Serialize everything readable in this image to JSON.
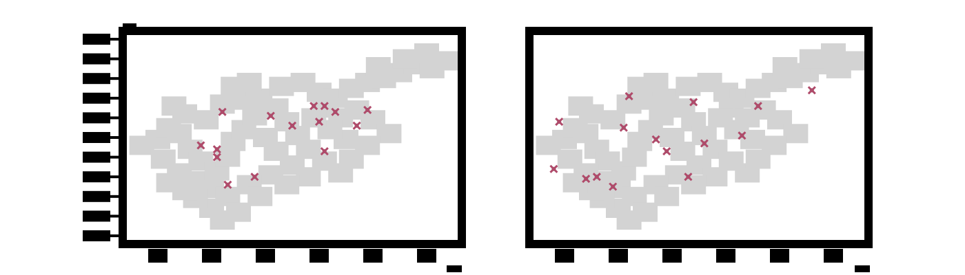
{
  "chart_data": [
    {
      "type": "scatter",
      "title": "",
      "xlabel": "",
      "ylabel": "",
      "grid": false,
      "legend": "none",
      "xlim": [
        0,
        6
      ],
      "ylim": [
        0,
        10
      ],
      "colors": {
        "background": "#d3d3d3",
        "highlight": "#b04a6a",
        "frame": "#000000"
      },
      "series": [
        {
          "role": "background",
          "points": [
            [
              0.2,
              4.6
            ],
            [
              0.5,
              4.9
            ],
            [
              0.7,
              5.5
            ],
            [
              0.9,
              5.2
            ],
            [
              1.1,
              4.4
            ],
            [
              1.3,
              3.8
            ],
            [
              0.6,
              3.9
            ],
            [
              0.9,
              3.2
            ],
            [
              1.2,
              2.8
            ],
            [
              1.5,
              2.4
            ],
            [
              1.6,
              3.3
            ],
            [
              1.8,
              4.0
            ],
            [
              1.9,
              4.8
            ],
            [
              2.1,
              5.4
            ],
            [
              2.3,
              6.1
            ],
            [
              2.5,
              5.0
            ],
            [
              2.7,
              4.3
            ],
            [
              1.4,
              5.9
            ],
            [
              1.0,
              6.2
            ],
            [
              0.8,
              6.6
            ],
            [
              1.7,
              6.7
            ],
            [
              2.0,
              6.9
            ],
            [
              2.4,
              7.0
            ],
            [
              2.7,
              6.5
            ],
            [
              2.9,
              5.8
            ],
            [
              3.1,
              5.1
            ],
            [
              3.3,
              4.4
            ],
            [
              3.0,
              3.6
            ],
            [
              2.6,
              3.1
            ],
            [
              2.2,
              2.6
            ],
            [
              1.8,
              2.0
            ],
            [
              1.5,
              1.4
            ],
            [
              1.7,
              0.8
            ],
            [
              2.0,
              1.2
            ],
            [
              2.4,
              2.0
            ],
            [
              1.2,
              1.9
            ],
            [
              1.0,
              2.3
            ],
            [
              0.7,
              2.7
            ],
            [
              1.9,
              7.6
            ],
            [
              2.2,
              7.8
            ],
            [
              2.8,
              7.6
            ],
            [
              3.2,
              7.8
            ],
            [
              3.5,
              7.3
            ],
            [
              3.8,
              7.0
            ],
            [
              4.1,
              7.5
            ],
            [
              4.4,
              7.8
            ],
            [
              4.7,
              8.0
            ],
            [
              5.0,
              8.3
            ],
            [
              5.3,
              8.7
            ],
            [
              5.6,
              8.5
            ],
            [
              5.9,
              8.9
            ],
            [
              5.5,
              9.3
            ],
            [
              5.1,
              9.0
            ],
            [
              4.6,
              8.6
            ],
            [
              3.6,
              6.5
            ],
            [
              3.9,
              6.0
            ],
            [
              4.2,
              6.4
            ],
            [
              4.5,
              5.9
            ],
            [
              4.8,
              5.2
            ],
            [
              4.4,
              4.6
            ],
            [
              4.0,
              4.9
            ],
            [
              3.7,
              5.4
            ],
            [
              3.4,
              6.0
            ],
            [
              3.6,
              3.8
            ],
            [
              3.9,
              3.2
            ],
            [
              4.1,
              3.9
            ],
            [
              3.3,
              3.0
            ],
            [
              2.9,
              2.6
            ]
          ]
        },
        {
          "role": "highlight",
          "points": [
            [
              1.3,
              4.6
            ],
            [
              1.7,
              6.3
            ],
            [
              2.6,
              6.1
            ],
            [
              3.4,
              6.6
            ],
            [
              3.6,
              6.6
            ],
            [
              3.8,
              6.3
            ],
            [
              4.4,
              6.4
            ],
            [
              3.5,
              5.8
            ],
            [
              4.2,
              5.6
            ],
            [
              3.0,
              5.6
            ],
            [
              1.6,
              4.4
            ],
            [
              1.6,
              4.0
            ],
            [
              1.8,
              2.6
            ],
            [
              2.3,
              3.0
            ],
            [
              3.6,
              4.3
            ]
          ]
        }
      ]
    },
    {
      "type": "scatter",
      "title": "",
      "xlabel": "",
      "ylabel": "",
      "grid": false,
      "legend": "none",
      "xlim": [
        0,
        6
      ],
      "ylim": [
        0,
        10
      ],
      "colors": {
        "background": "#d3d3d3",
        "highlight": "#b04a6a",
        "frame": "#000000"
      },
      "series": [
        {
          "role": "background",
          "points": [
            [
              0.2,
              4.6
            ],
            [
              0.5,
              4.9
            ],
            [
              0.7,
              5.5
            ],
            [
              0.9,
              5.2
            ],
            [
              1.1,
              4.4
            ],
            [
              1.3,
              3.8
            ],
            [
              0.6,
              3.9
            ],
            [
              0.9,
              3.2
            ],
            [
              1.2,
              2.8
            ],
            [
              1.5,
              2.4
            ],
            [
              1.6,
              3.3
            ],
            [
              1.8,
              4.0
            ],
            [
              1.9,
              4.8
            ],
            [
              2.1,
              5.4
            ],
            [
              2.3,
              6.1
            ],
            [
              2.5,
              5.0
            ],
            [
              2.7,
              4.3
            ],
            [
              1.4,
              5.9
            ],
            [
              1.0,
              6.2
            ],
            [
              0.8,
              6.6
            ],
            [
              1.7,
              6.7
            ],
            [
              2.0,
              6.9
            ],
            [
              2.4,
              7.0
            ],
            [
              2.7,
              6.5
            ],
            [
              2.9,
              5.8
            ],
            [
              3.1,
              5.1
            ],
            [
              3.3,
              4.4
            ],
            [
              3.0,
              3.6
            ],
            [
              2.6,
              3.1
            ],
            [
              2.2,
              2.6
            ],
            [
              1.8,
              2.0
            ],
            [
              1.5,
              1.4
            ],
            [
              1.7,
              0.8
            ],
            [
              2.0,
              1.2
            ],
            [
              2.4,
              2.0
            ],
            [
              1.2,
              1.9
            ],
            [
              1.0,
              2.3
            ],
            [
              0.7,
              2.7
            ],
            [
              1.9,
              7.6
            ],
            [
              2.2,
              7.8
            ],
            [
              2.8,
              7.6
            ],
            [
              3.2,
              7.8
            ],
            [
              3.5,
              7.3
            ],
            [
              3.8,
              7.0
            ],
            [
              4.1,
              7.5
            ],
            [
              4.4,
              7.8
            ],
            [
              4.7,
              8.0
            ],
            [
              5.0,
              8.3
            ],
            [
              5.3,
              8.7
            ],
            [
              5.6,
              8.5
            ],
            [
              5.9,
              8.9
            ],
            [
              5.5,
              9.3
            ],
            [
              5.1,
              9.0
            ],
            [
              4.6,
              8.6
            ],
            [
              3.6,
              6.5
            ],
            [
              3.9,
              6.0
            ],
            [
              4.2,
              6.4
            ],
            [
              4.5,
              5.9
            ],
            [
              4.8,
              5.2
            ],
            [
              4.4,
              4.6
            ],
            [
              4.0,
              4.9
            ],
            [
              3.7,
              5.4
            ],
            [
              3.4,
              6.0
            ],
            [
              3.6,
              3.8
            ],
            [
              3.9,
              3.2
            ],
            [
              4.1,
              3.9
            ],
            [
              3.3,
              3.0
            ],
            [
              2.9,
              2.6
            ]
          ]
        },
        {
          "role": "highlight",
          "points": [
            [
              1.7,
              7.1
            ],
            [
              2.9,
              6.8
            ],
            [
              4.1,
              6.6
            ],
            [
              5.1,
              7.4
            ],
            [
              0.4,
              5.8
            ],
            [
              1.6,
              5.5
            ],
            [
              2.2,
              4.9
            ],
            [
              2.4,
              4.3
            ],
            [
              3.1,
              4.7
            ],
            [
              3.8,
              5.1
            ],
            [
              0.3,
              3.4
            ],
            [
              1.1,
              3.0
            ],
            [
              1.4,
              2.5
            ],
            [
              0.9,
              2.9
            ],
            [
              2.8,
              3.0
            ]
          ]
        }
      ]
    }
  ]
}
